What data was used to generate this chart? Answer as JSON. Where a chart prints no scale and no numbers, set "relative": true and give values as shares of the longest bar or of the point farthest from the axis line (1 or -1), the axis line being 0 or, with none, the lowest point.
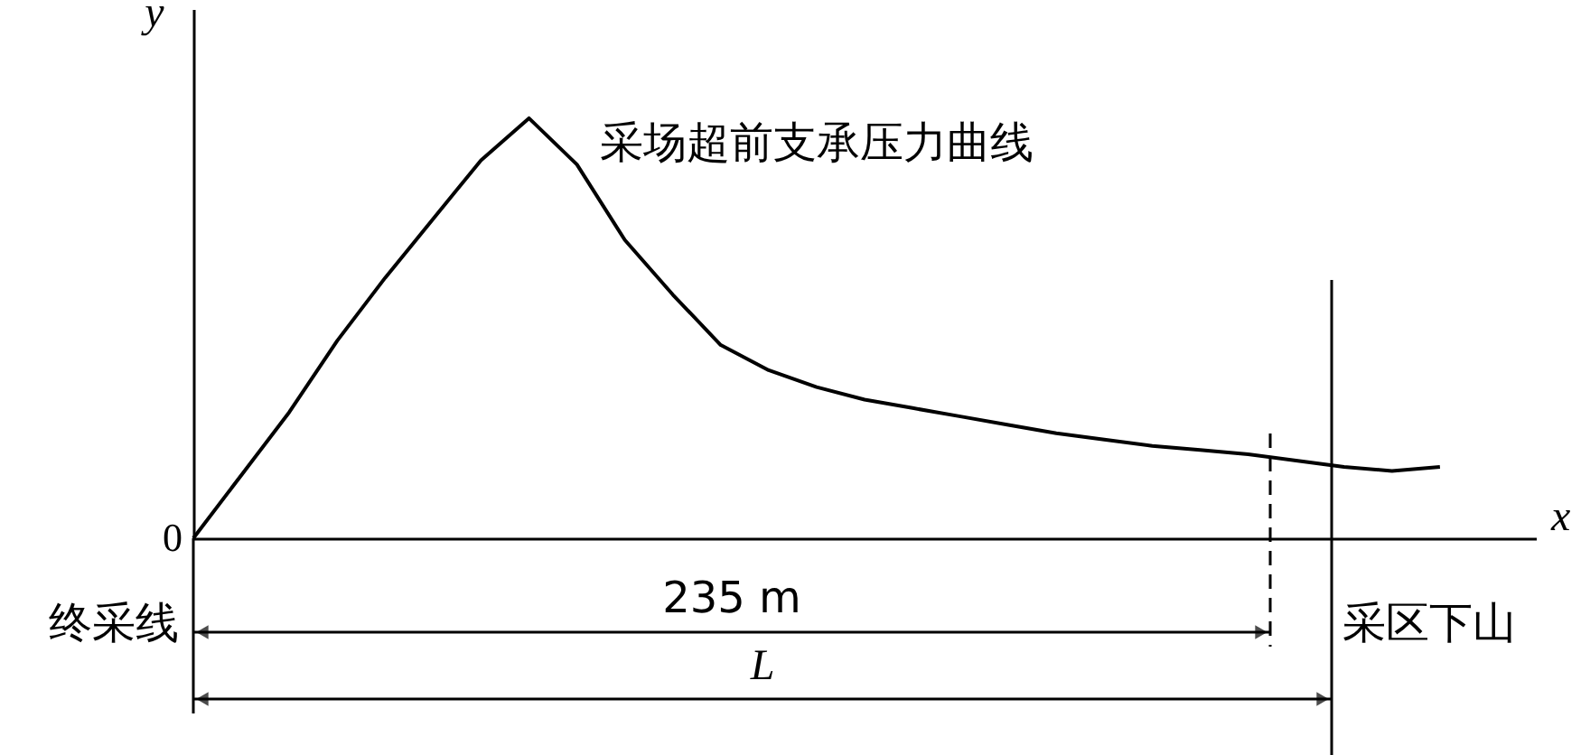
{
  "chart_data": {
    "type": "line",
    "relative": true,
    "xlabel": "x",
    "ylabel": "y",
    "categories": [
      null,
      null,
      null,
      null,
      null,
      null,
      null,
      null,
      null,
      null,
      null,
      null,
      null,
      null,
      null,
      null,
      null,
      null,
      null,
      null,
      null,
      null,
      null,
      null,
      null,
      null,
      null
    ],
    "series": [
      {
        "color": "#000000",
        "values": [
          0,
          0.15,
          0.3,
          0.47,
          0.62,
          0.76,
          0.9,
          1,
          0.89,
          0.71,
          0.58,
          0.46,
          0.4,
          0.36,
          0.33,
          0.31,
          0.29,
          0.27,
          0.25,
          0.235,
          0.22,
          0.21,
          0.2,
          0.185,
          0.17,
          0.16,
          0.17
        ]
      }
    ],
    "grid": false,
    "marker": "none",
    "line_style": "solid",
    "annotations": [
      "采场超前支承压力曲线",
      "0",
      "终采线",
      "采区下山",
      "235 m",
      "L"
    ]
  }
}
